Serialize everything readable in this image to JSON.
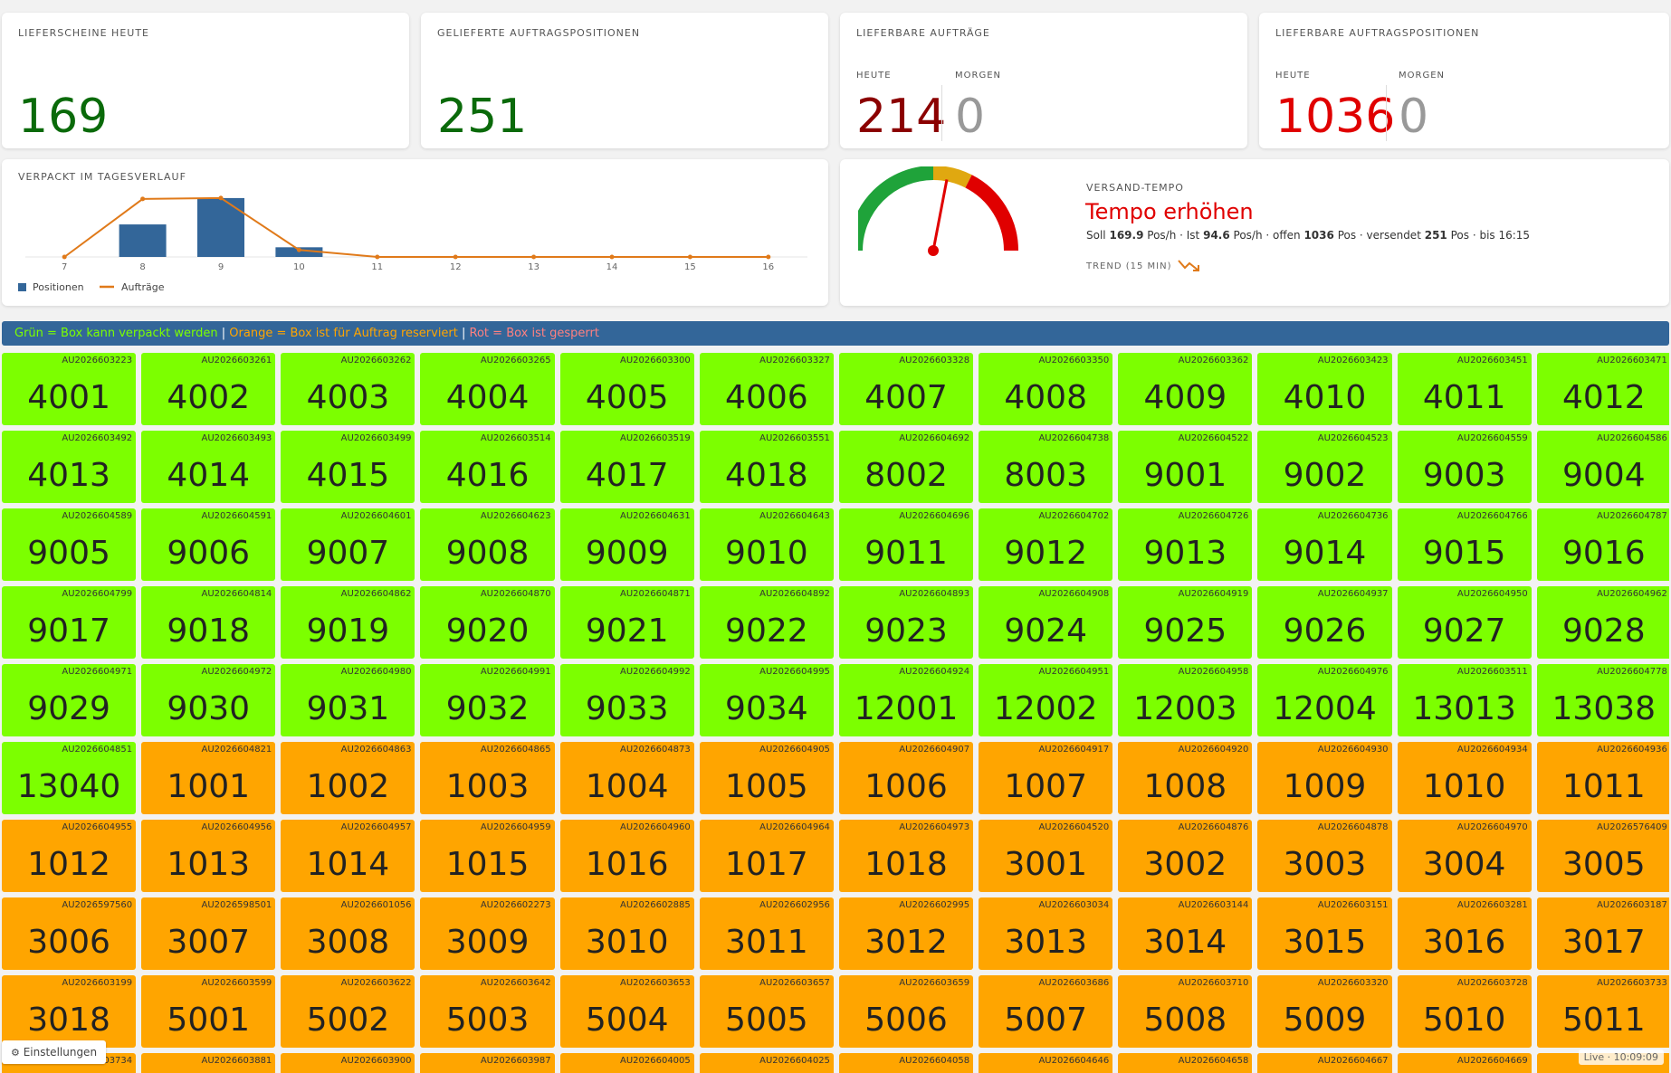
{
  "kpis": {
    "lieferscheine": {
      "title": "LIEFERSCHEINE HEUTE",
      "value": "169",
      "color": "#0a6a0a"
    },
    "gelieferte": {
      "title": "GELIEFERTE AUFTRAGSPOSITIONEN",
      "value": "251",
      "color": "#0a6a0a"
    },
    "lieferbare_auftraege": {
      "title": "LIEFERBARE AUFTRÄGE",
      "today_label": "HEUTE",
      "today_value": "214",
      "today_color": "#8b0000",
      "tomorrow_label": "MORGEN",
      "tomorrow_value": "0",
      "tomorrow_color": "#999999"
    },
    "lieferbare_positionen": {
      "title": "LIEFERBARE AUFTRAGSPOSITIONEN",
      "today_label": "HEUTE",
      "today_value": "1036",
      "today_color": "#e00000",
      "tomorrow_label": "MORGEN",
      "tomorrow_value": "0",
      "tomorrow_color": "#999999"
    }
  },
  "chart_data": {
    "type": "bar",
    "title": "VERPACKT IM TAGESVERLAUF",
    "categories": [
      "7",
      "8",
      "9",
      "10",
      "11",
      "12",
      "13",
      "14",
      "15",
      "16"
    ],
    "series": [
      {
        "name": "Positionen",
        "kind": "bar",
        "color": "#336699",
        "values": [
          0,
          37,
          67,
          11,
          0,
          0,
          0,
          0,
          0,
          0
        ]
      },
      {
        "name": "Aufträge",
        "kind": "line",
        "color": "#e07a1a",
        "values": [
          0,
          66,
          67,
          8,
          0,
          0,
          0,
          0,
          0,
          0
        ]
      }
    ],
    "ylim": [
      0,
      70
    ],
    "grid": false,
    "legend": "bottom-left"
  },
  "tempo": {
    "title": "VERSAND-TEMPO",
    "headline": "Tempo erhöhen",
    "headline_color": "#e00000",
    "soll_prefix": "Soll",
    "soll_value": "169.9",
    "ist_prefix": "Pos/h · Ist",
    "ist_value": "94.6",
    "offen_prefix": "Pos/h · offen",
    "offen_value": "1036",
    "versendet_prefix": "Pos · versendet",
    "versendet_value": "251",
    "suffix": "Pos · bis 16:15",
    "trend_label": "TREND (15 MIN)",
    "trend_icon": "trend-down-icon",
    "gauge_fraction": 0.56,
    "gauge_colors": [
      "#1fa33a",
      "#e0a810",
      "#e00000"
    ]
  },
  "legend": {
    "green_text": "Grün = Box kann verpackt werden",
    "sep1": " | ",
    "orange_text": "Orange = Box ist für Auftrag reserviert",
    "sep2": " | ",
    "red_text": "Rot = Box ist gesperrt",
    "green_color": "#7cff00",
    "orange_color": "#ffa500",
    "red_color": "#ff8080",
    "sep_color": "#ffffff"
  },
  "boxes": [
    {
      "order": "AU2026603223",
      "num": "4001",
      "status": "green"
    },
    {
      "order": "AU2026603261",
      "num": "4002",
      "status": "green"
    },
    {
      "order": "AU2026603262",
      "num": "4003",
      "status": "green"
    },
    {
      "order": "AU2026603265",
      "num": "4004",
      "status": "green"
    },
    {
      "order": "AU2026603300",
      "num": "4005",
      "status": "green"
    },
    {
      "order": "AU2026603327",
      "num": "4006",
      "status": "green"
    },
    {
      "order": "AU2026603328",
      "num": "4007",
      "status": "green"
    },
    {
      "order": "AU2026603350",
      "num": "4008",
      "status": "green"
    },
    {
      "order": "AU2026603362",
      "num": "4009",
      "status": "green"
    },
    {
      "order": "AU2026603423",
      "num": "4010",
      "status": "green"
    },
    {
      "order": "AU2026603451",
      "num": "4011",
      "status": "green"
    },
    {
      "order": "AU2026603471",
      "num": "4012",
      "status": "green"
    },
    {
      "order": "AU2026603492",
      "num": "4013",
      "status": "green"
    },
    {
      "order": "AU2026603493",
      "num": "4014",
      "status": "green"
    },
    {
      "order": "AU2026603499",
      "num": "4015",
      "status": "green"
    },
    {
      "order": "AU2026603514",
      "num": "4016",
      "status": "green"
    },
    {
      "order": "AU2026603519",
      "num": "4017",
      "status": "green"
    },
    {
      "order": "AU2026603551",
      "num": "4018",
      "status": "green"
    },
    {
      "order": "AU2026604692",
      "num": "8002",
      "status": "green"
    },
    {
      "order": "AU2026604738",
      "num": "8003",
      "status": "green"
    },
    {
      "order": "AU2026604522",
      "num": "9001",
      "status": "green"
    },
    {
      "order": "AU2026604523",
      "num": "9002",
      "status": "green"
    },
    {
      "order": "AU2026604559",
      "num": "9003",
      "status": "green"
    },
    {
      "order": "AU2026604586",
      "num": "9004",
      "status": "green"
    },
    {
      "order": "AU2026604589",
      "num": "9005",
      "status": "green"
    },
    {
      "order": "AU2026604591",
      "num": "9006",
      "status": "green"
    },
    {
      "order": "AU2026604601",
      "num": "9007",
      "status": "green"
    },
    {
      "order": "AU2026604623",
      "num": "9008",
      "status": "green"
    },
    {
      "order": "AU2026604631",
      "num": "9009",
      "status": "green"
    },
    {
      "order": "AU2026604643",
      "num": "9010",
      "status": "green"
    },
    {
      "order": "AU2026604696",
      "num": "9011",
      "status": "green"
    },
    {
      "order": "AU2026604702",
      "num": "9012",
      "status": "green"
    },
    {
      "order": "AU2026604726",
      "num": "9013",
      "status": "green"
    },
    {
      "order": "AU2026604736",
      "num": "9014",
      "status": "green"
    },
    {
      "order": "AU2026604766",
      "num": "9015",
      "status": "green"
    },
    {
      "order": "AU2026604787",
      "num": "9016",
      "status": "green"
    },
    {
      "order": "AU2026604799",
      "num": "9017",
      "status": "green"
    },
    {
      "order": "AU2026604814",
      "num": "9018",
      "status": "green"
    },
    {
      "order": "AU2026604862",
      "num": "9019",
      "status": "green"
    },
    {
      "order": "AU2026604870",
      "num": "9020",
      "status": "green"
    },
    {
      "order": "AU2026604871",
      "num": "9021",
      "status": "green"
    },
    {
      "order": "AU2026604892",
      "num": "9022",
      "status": "green"
    },
    {
      "order": "AU2026604893",
      "num": "9023",
      "status": "green"
    },
    {
      "order": "AU2026604908",
      "num": "9024",
      "status": "green"
    },
    {
      "order": "AU2026604919",
      "num": "9025",
      "status": "green"
    },
    {
      "order": "AU2026604937",
      "num": "9026",
      "status": "green"
    },
    {
      "order": "AU2026604950",
      "num": "9027",
      "status": "green"
    },
    {
      "order": "AU2026604962",
      "num": "9028",
      "status": "green"
    },
    {
      "order": "AU2026604971",
      "num": "9029",
      "status": "green"
    },
    {
      "order": "AU2026604972",
      "num": "9030",
      "status": "green"
    },
    {
      "order": "AU2026604980",
      "num": "9031",
      "status": "green"
    },
    {
      "order": "AU2026604991",
      "num": "9032",
      "status": "green"
    },
    {
      "order": "AU2026604992",
      "num": "9033",
      "status": "green"
    },
    {
      "order": "AU2026604995",
      "num": "9034",
      "status": "green"
    },
    {
      "order": "AU2026604924",
      "num": "12001",
      "status": "green"
    },
    {
      "order": "AU2026604951",
      "num": "12002",
      "status": "green"
    },
    {
      "order": "AU2026604958",
      "num": "12003",
      "status": "green"
    },
    {
      "order": "AU2026604976",
      "num": "12004",
      "status": "green"
    },
    {
      "order": "AU2026603511",
      "num": "13013",
      "status": "green"
    },
    {
      "order": "AU2026604778",
      "num": "13038",
      "status": "green"
    },
    {
      "order": "AU2026604851",
      "num": "13040",
      "status": "green"
    },
    {
      "order": "AU2026604821",
      "num": "1001",
      "status": "orange"
    },
    {
      "order": "AU2026604863",
      "num": "1002",
      "status": "orange"
    },
    {
      "order": "AU2026604865",
      "num": "1003",
      "status": "orange"
    },
    {
      "order": "AU2026604873",
      "num": "1004",
      "status": "orange"
    },
    {
      "order": "AU2026604905",
      "num": "1005",
      "status": "orange"
    },
    {
      "order": "AU2026604907",
      "num": "1006",
      "status": "orange"
    },
    {
      "order": "AU2026604917",
      "num": "1007",
      "status": "orange"
    },
    {
      "order": "AU2026604920",
      "num": "1008",
      "status": "orange"
    },
    {
      "order": "AU2026604930",
      "num": "1009",
      "status": "orange"
    },
    {
      "order": "AU2026604934",
      "num": "1010",
      "status": "orange"
    },
    {
      "order": "AU2026604936",
      "num": "1011",
      "status": "orange"
    },
    {
      "order": "AU2026604955",
      "num": "1012",
      "status": "orange"
    },
    {
      "order": "AU2026604956",
      "num": "1013",
      "status": "orange"
    },
    {
      "order": "AU2026604957",
      "num": "1014",
      "status": "orange"
    },
    {
      "order": "AU2026604959",
      "num": "1015",
      "status": "orange"
    },
    {
      "order": "AU2026604960",
      "num": "1016",
      "status": "orange"
    },
    {
      "order": "AU2026604964",
      "num": "1017",
      "status": "orange"
    },
    {
      "order": "AU2026604973",
      "num": "1018",
      "status": "orange"
    },
    {
      "order": "AU2026604520",
      "num": "3001",
      "status": "orange"
    },
    {
      "order": "AU2026604876",
      "num": "3002",
      "status": "orange"
    },
    {
      "order": "AU2026604878",
      "num": "3003",
      "status": "orange"
    },
    {
      "order": "AU2026604970",
      "num": "3004",
      "status": "orange"
    },
    {
      "order": "AU2026576409",
      "num": "3005",
      "status": "orange"
    },
    {
      "order": "AU2026597560",
      "num": "3006",
      "status": "orange"
    },
    {
      "order": "AU2026598501",
      "num": "3007",
      "status": "orange"
    },
    {
      "order": "AU2026601056",
      "num": "3008",
      "status": "orange"
    },
    {
      "order": "AU2026602273",
      "num": "3009",
      "status": "orange"
    },
    {
      "order": "AU2026602885",
      "num": "3010",
      "status": "orange"
    },
    {
      "order": "AU2026602956",
      "num": "3011",
      "status": "orange"
    },
    {
      "order": "AU2026602995",
      "num": "3012",
      "status": "orange"
    },
    {
      "order": "AU2026603034",
      "num": "3013",
      "status": "orange"
    },
    {
      "order": "AU2026603144",
      "num": "3014",
      "status": "orange"
    },
    {
      "order": "AU2026603151",
      "num": "3015",
      "status": "orange"
    },
    {
      "order": "AU2026603281",
      "num": "3016",
      "status": "orange"
    },
    {
      "order": "AU2026603187",
      "num": "3017",
      "status": "orange"
    },
    {
      "order": "AU2026603199",
      "num": "3018",
      "status": "orange"
    },
    {
      "order": "AU2026603599",
      "num": "5001",
      "status": "orange"
    },
    {
      "order": "AU2026603622",
      "num": "5002",
      "status": "orange"
    },
    {
      "order": "AU2026603642",
      "num": "5003",
      "status": "orange"
    },
    {
      "order": "AU2026603653",
      "num": "5004",
      "status": "orange"
    },
    {
      "order": "AU2026603657",
      "num": "5005",
      "status": "orange"
    },
    {
      "order": "AU2026603659",
      "num": "5006",
      "status": "orange"
    },
    {
      "order": "AU2026603686",
      "num": "5007",
      "status": "orange"
    },
    {
      "order": "AU2026603710",
      "num": "5008",
      "status": "orange"
    },
    {
      "order": "AU2026603320",
      "num": "5009",
      "status": "orange"
    },
    {
      "order": "AU2026603728",
      "num": "5010",
      "status": "orange"
    },
    {
      "order": "AU2026603733",
      "num": "5011",
      "status": "orange"
    },
    {
      "order": "AU2026603734",
      "num": "",
      "status": "orange"
    },
    {
      "order": "AU2026603881",
      "num": "",
      "status": "orange"
    },
    {
      "order": "AU2026603900",
      "num": "",
      "status": "orange"
    },
    {
      "order": "AU2026603987",
      "num": "",
      "status": "orange"
    },
    {
      "order": "AU2026604005",
      "num": "",
      "status": "orange"
    },
    {
      "order": "AU2026604025",
      "num": "",
      "status": "orange"
    },
    {
      "order": "AU2026604058",
      "num": "",
      "status": "orange"
    },
    {
      "order": "AU2026604646",
      "num": "",
      "status": "orange"
    },
    {
      "order": "AU2026604658",
      "num": "",
      "status": "orange"
    },
    {
      "order": "AU2026604667",
      "num": "",
      "status": "orange"
    },
    {
      "order": "AU2026604669",
      "num": "",
      "status": "orange"
    },
    {
      "order": "",
      "num": "",
      "status": "orange"
    }
  ],
  "footer": {
    "settings_icon": "gear-icon",
    "settings_label": "Einstellungen",
    "live_label": "Live · 10:09:09"
  }
}
